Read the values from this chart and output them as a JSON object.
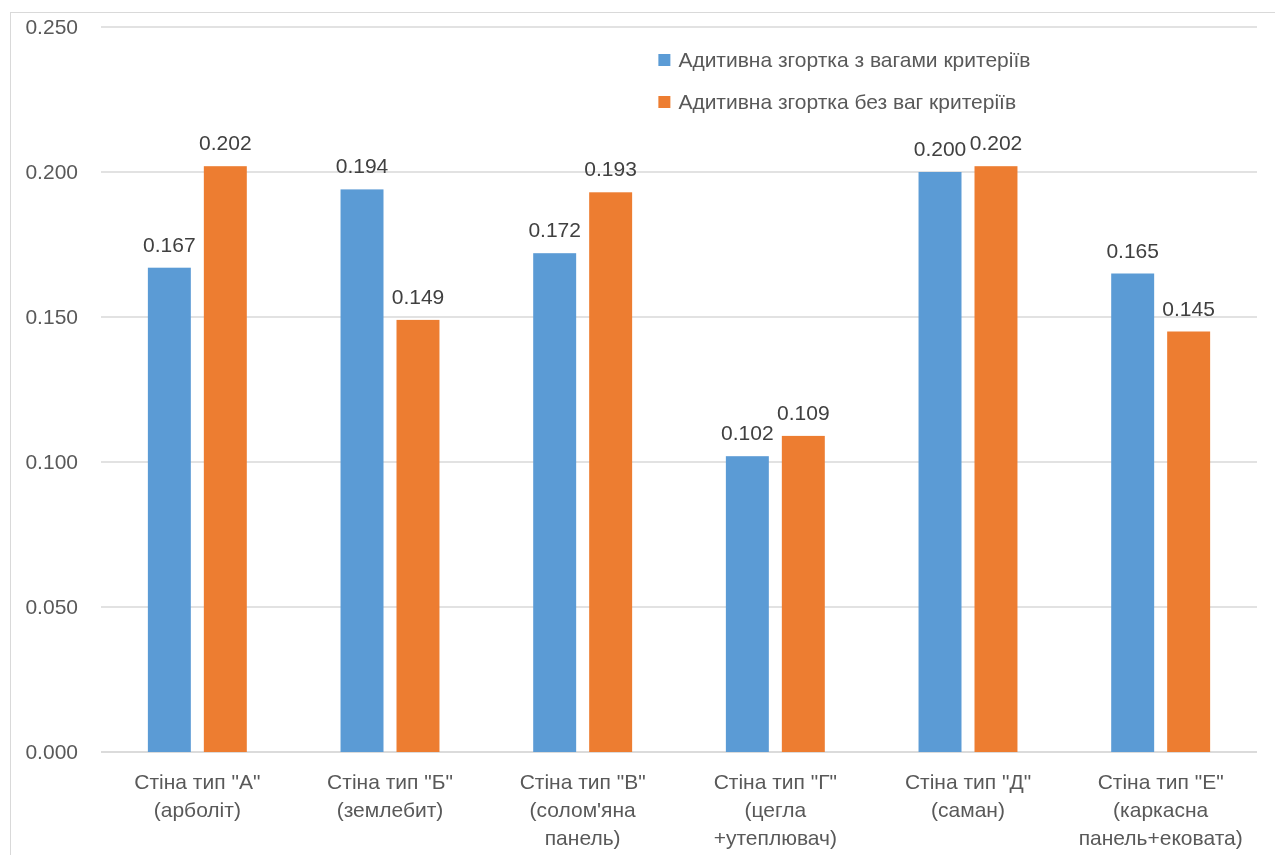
{
  "chart_data": {
    "type": "bar",
    "categories": [
      "Стіна тип \"А\" (арболіт)",
      "Стіна тип \"Б\" (землебит)",
      "Стіна тип \"В\" (солом'яна панель)",
      "Стіна тип \"Г\" (цегла +утеплювач)",
      "Стіна тип \"Д\" (саман)",
      "Стіна тип \"Е\" (каркасна панель+ековата)"
    ],
    "series": [
      {
        "name": "Адитивна згортка з вагами критеріїв",
        "color": "#5b9bd5",
        "values": [
          0.167,
          0.194,
          0.172,
          0.102,
          0.2,
          0.165
        ],
        "value_labels": [
          "0.167",
          "0.194",
          "0.172",
          "0.102",
          "0.200",
          "0.165"
        ]
      },
      {
        "name": "Адитивна згортка без ваг критеріїв",
        "color": "#ed7d31",
        "values": [
          0.202,
          0.149,
          0.193,
          0.109,
          0.202,
          0.145
        ],
        "value_labels": [
          "0.202",
          "0.149",
          "0.193",
          "0.109",
          "0.202",
          "0.145"
        ]
      }
    ],
    "ylim": [
      0,
      0.25
    ],
    "yticks": [
      {
        "value": 0,
        "label": "0.000"
      },
      {
        "value": 0.05,
        "label": "0.050"
      },
      {
        "value": 0.1,
        "label": "0.100"
      },
      {
        "value": 0.15,
        "label": "0.150"
      },
      {
        "value": 0.2,
        "label": "0.200"
      },
      {
        "value": 0.25,
        "label": "0.250"
      }
    ],
    "grid": "y",
    "legend": "top right"
  }
}
